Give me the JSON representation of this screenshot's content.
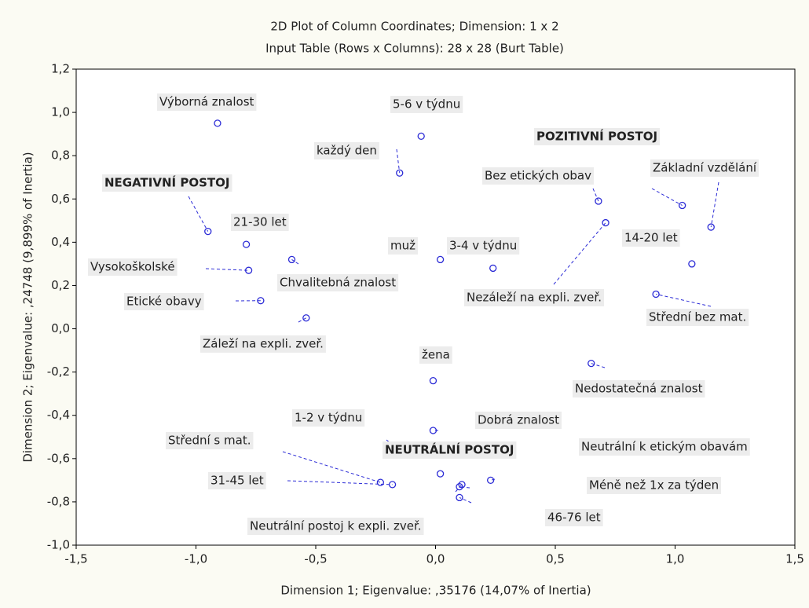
{
  "chart_data": {
    "type": "scatter",
    "title": "2D Plot of Column Coordinates; Dimension:  1 x 2",
    "subtitle": "Input Table (Rows x Columns): 28 x 28 (Burt Table)",
    "x_label": "Dimension 1; Eigenvalue: ,35176 (14,07% of Inertia)",
    "y_label": "Dimension 2; Eigenvalue: ,24748 (9,899% of Inertia)",
    "xlim": [
      -1.5,
      1.5
    ],
    "ylim": [
      -1.0,
      1.2
    ],
    "xticks": [
      {
        "value": -1.5,
        "label": "-1,5"
      },
      {
        "value": -1.0,
        "label": "-1,0"
      },
      {
        "value": -0.5,
        "label": "-0,5"
      },
      {
        "value": 0,
        "label": "0,0"
      },
      {
        "value": 0.5,
        "label": "0,5"
      },
      {
        "value": 1.0,
        "label": "1,0"
      },
      {
        "value": 1.5,
        "label": "1,5"
      }
    ],
    "yticks": [
      {
        "value": -1.0,
        "label": "-1,0"
      },
      {
        "value": -0.8,
        "label": "-0,8"
      },
      {
        "value": -0.6,
        "label": "-0,6"
      },
      {
        "value": -0.4,
        "label": "-0,4"
      },
      {
        "value": -0.2,
        "label": "-0,2"
      },
      {
        "value": 0,
        "label": "0,0"
      },
      {
        "value": 0.2,
        "label": "0,2"
      },
      {
        "value": 0.4,
        "label": "0,4"
      },
      {
        "value": 0.6,
        "label": "0,6"
      },
      {
        "value": 0.8,
        "label": "0,8"
      },
      {
        "value": 1.0,
        "label": "1,0"
      },
      {
        "value": 1.2,
        "label": "1,2"
      }
    ],
    "grid": false,
    "point_color": "#2b2bd6",
    "labels": [
      "Výborná znalost",
      "5-6 v týdnu",
      "každý den",
      "Bez etických obav",
      "POZITIVNÍ POSTOJ",
      "Základní vzdělání",
      "NEGATIVNÍ POSTOJ",
      "Nezáleží na expli. zveř.",
      "21-30 let",
      "14-20 let",
      "Chvalitebná znalost",
      "muž",
      "3-4 v týdnu",
      "Vysokoškolské",
      "Etické obavy",
      "Střední bez mat.",
      "Záleží na expli. zveř.",
      "Nedostatečná znalost",
      "žena",
      "Dobrá znalost",
      "1-2 v týdnu",
      "NEUTRÁLNÍ POSTOJ",
      "Neutrální k etickým obavám",
      "Střední s mat.",
      "31-45 let",
      "Méně než 1x za týden",
      "Neutrální postoj k expli. zveř.",
      "46-76 let"
    ],
    "label_colors": [
      "#3cb83c",
      "#2424d0",
      "#2424d0",
      "#f07030",
      "#ff0000",
      "#333333",
      "#ff0000",
      "#802080",
      "#40d0d0",
      "#40d0d0",
      "#3cb83c",
      "#e0e000",
      "#2424d0",
      "#333333",
      "#f07030",
      "#333333",
      "#802080",
      "#3cb83c",
      "#e0e000",
      "#3cb83c",
      "#2424d0",
      "#ff0000",
      "#f07030",
      "#333333",
      "#40d0d0",
      "#2424d0",
      "#802080",
      "#40d0d0"
    ],
    "x": [
      -0.91,
      -0.06,
      -0.15,
      0.68,
      1.03,
      1.15,
      -0.95,
      0.71,
      -0.79,
      1.07,
      -0.6,
      0.02,
      0.24,
      -0.78,
      -0.73,
      0.92,
      -0.54,
      0.65,
      -0.01,
      -0.01,
      -0.14,
      0.02,
      0.23,
      -0.23,
      -0.18,
      0.1,
      0.11,
      0.1
    ],
    "values": [
      0.95,
      0.89,
      0.72,
      0.59,
      0.57,
      0.47,
      0.45,
      0.49,
      0.39,
      0.3,
      0.32,
      0.32,
      0.28,
      0.27,
      0.13,
      0.16,
      0.05,
      -0.16,
      -0.24,
      -0.47,
      -0.57,
      -0.67,
      -0.7,
      -0.71,
      -0.72,
      -0.73,
      -0.72,
      -0.78
    ]
  }
}
